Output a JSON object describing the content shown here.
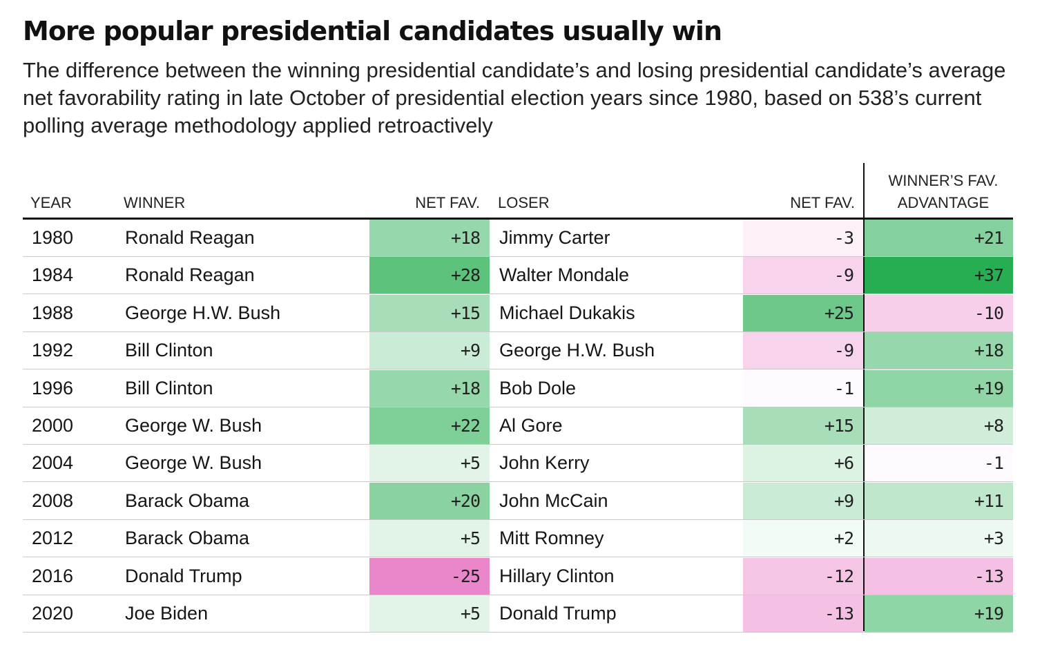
{
  "title": "More popular presidential candidates usually win",
  "subtitle": "The difference between the winning presidential candidate’s and losing presidential candidate’s average net favorability rating in late October of presidential election years since 1980, based on 538’s current polling average methodology applied retroactively",
  "colors": {
    "positive": "#27ae52",
    "negative": "#e04db0",
    "max_magnitude": 37
  },
  "chart_data": {
    "type": "table",
    "columns": {
      "year": "YEAR",
      "winner": "WINNER",
      "winner_fav": "NET FAV.",
      "loser": "LOSER",
      "loser_fav": "NET FAV.",
      "advantage_line1": "WINNER’S FAV.",
      "advantage_line2": "ADVANTAGE"
    },
    "rows": [
      {
        "year": "1980",
        "winner": "Ronald Reagan",
        "winner_fav": 18,
        "loser": "Jimmy Carter",
        "loser_fav": -3,
        "advantage": 21
      },
      {
        "year": "1984",
        "winner": "Ronald Reagan",
        "winner_fav": 28,
        "loser": "Walter Mondale",
        "loser_fav": -9,
        "advantage": 37
      },
      {
        "year": "1988",
        "winner": "George H.W. Bush",
        "winner_fav": 15,
        "loser": "Michael Dukakis",
        "loser_fav": 25,
        "advantage": -10
      },
      {
        "year": "1992",
        "winner": "Bill Clinton",
        "winner_fav": 9,
        "loser": "George H.W. Bush",
        "loser_fav": -9,
        "advantage": 18
      },
      {
        "year": "1996",
        "winner": "Bill Clinton",
        "winner_fav": 18,
        "loser": "Bob Dole",
        "loser_fav": -1,
        "advantage": 19
      },
      {
        "year": "2000",
        "winner": "George W. Bush",
        "winner_fav": 22,
        "loser": "Al Gore",
        "loser_fav": 15,
        "advantage": 8
      },
      {
        "year": "2004",
        "winner": "George W. Bush",
        "winner_fav": 5,
        "loser": "John Kerry",
        "loser_fav": 6,
        "advantage": -1
      },
      {
        "year": "2008",
        "winner": "Barack Obama",
        "winner_fav": 20,
        "loser": "John McCain",
        "loser_fav": 9,
        "advantage": 11
      },
      {
        "year": "2012",
        "winner": "Barack Obama",
        "winner_fav": 5,
        "loser": "Mitt Romney",
        "loser_fav": 2,
        "advantage": 3
      },
      {
        "year": "2016",
        "winner": "Donald Trump",
        "winner_fav": -25,
        "loser": "Hillary Clinton",
        "loser_fav": -12,
        "advantage": -13
      },
      {
        "year": "2020",
        "winner": "Joe Biden",
        "winner_fav": 5,
        "loser": "Donald Trump",
        "loser_fav": -13,
        "advantage": 19
      }
    ]
  }
}
